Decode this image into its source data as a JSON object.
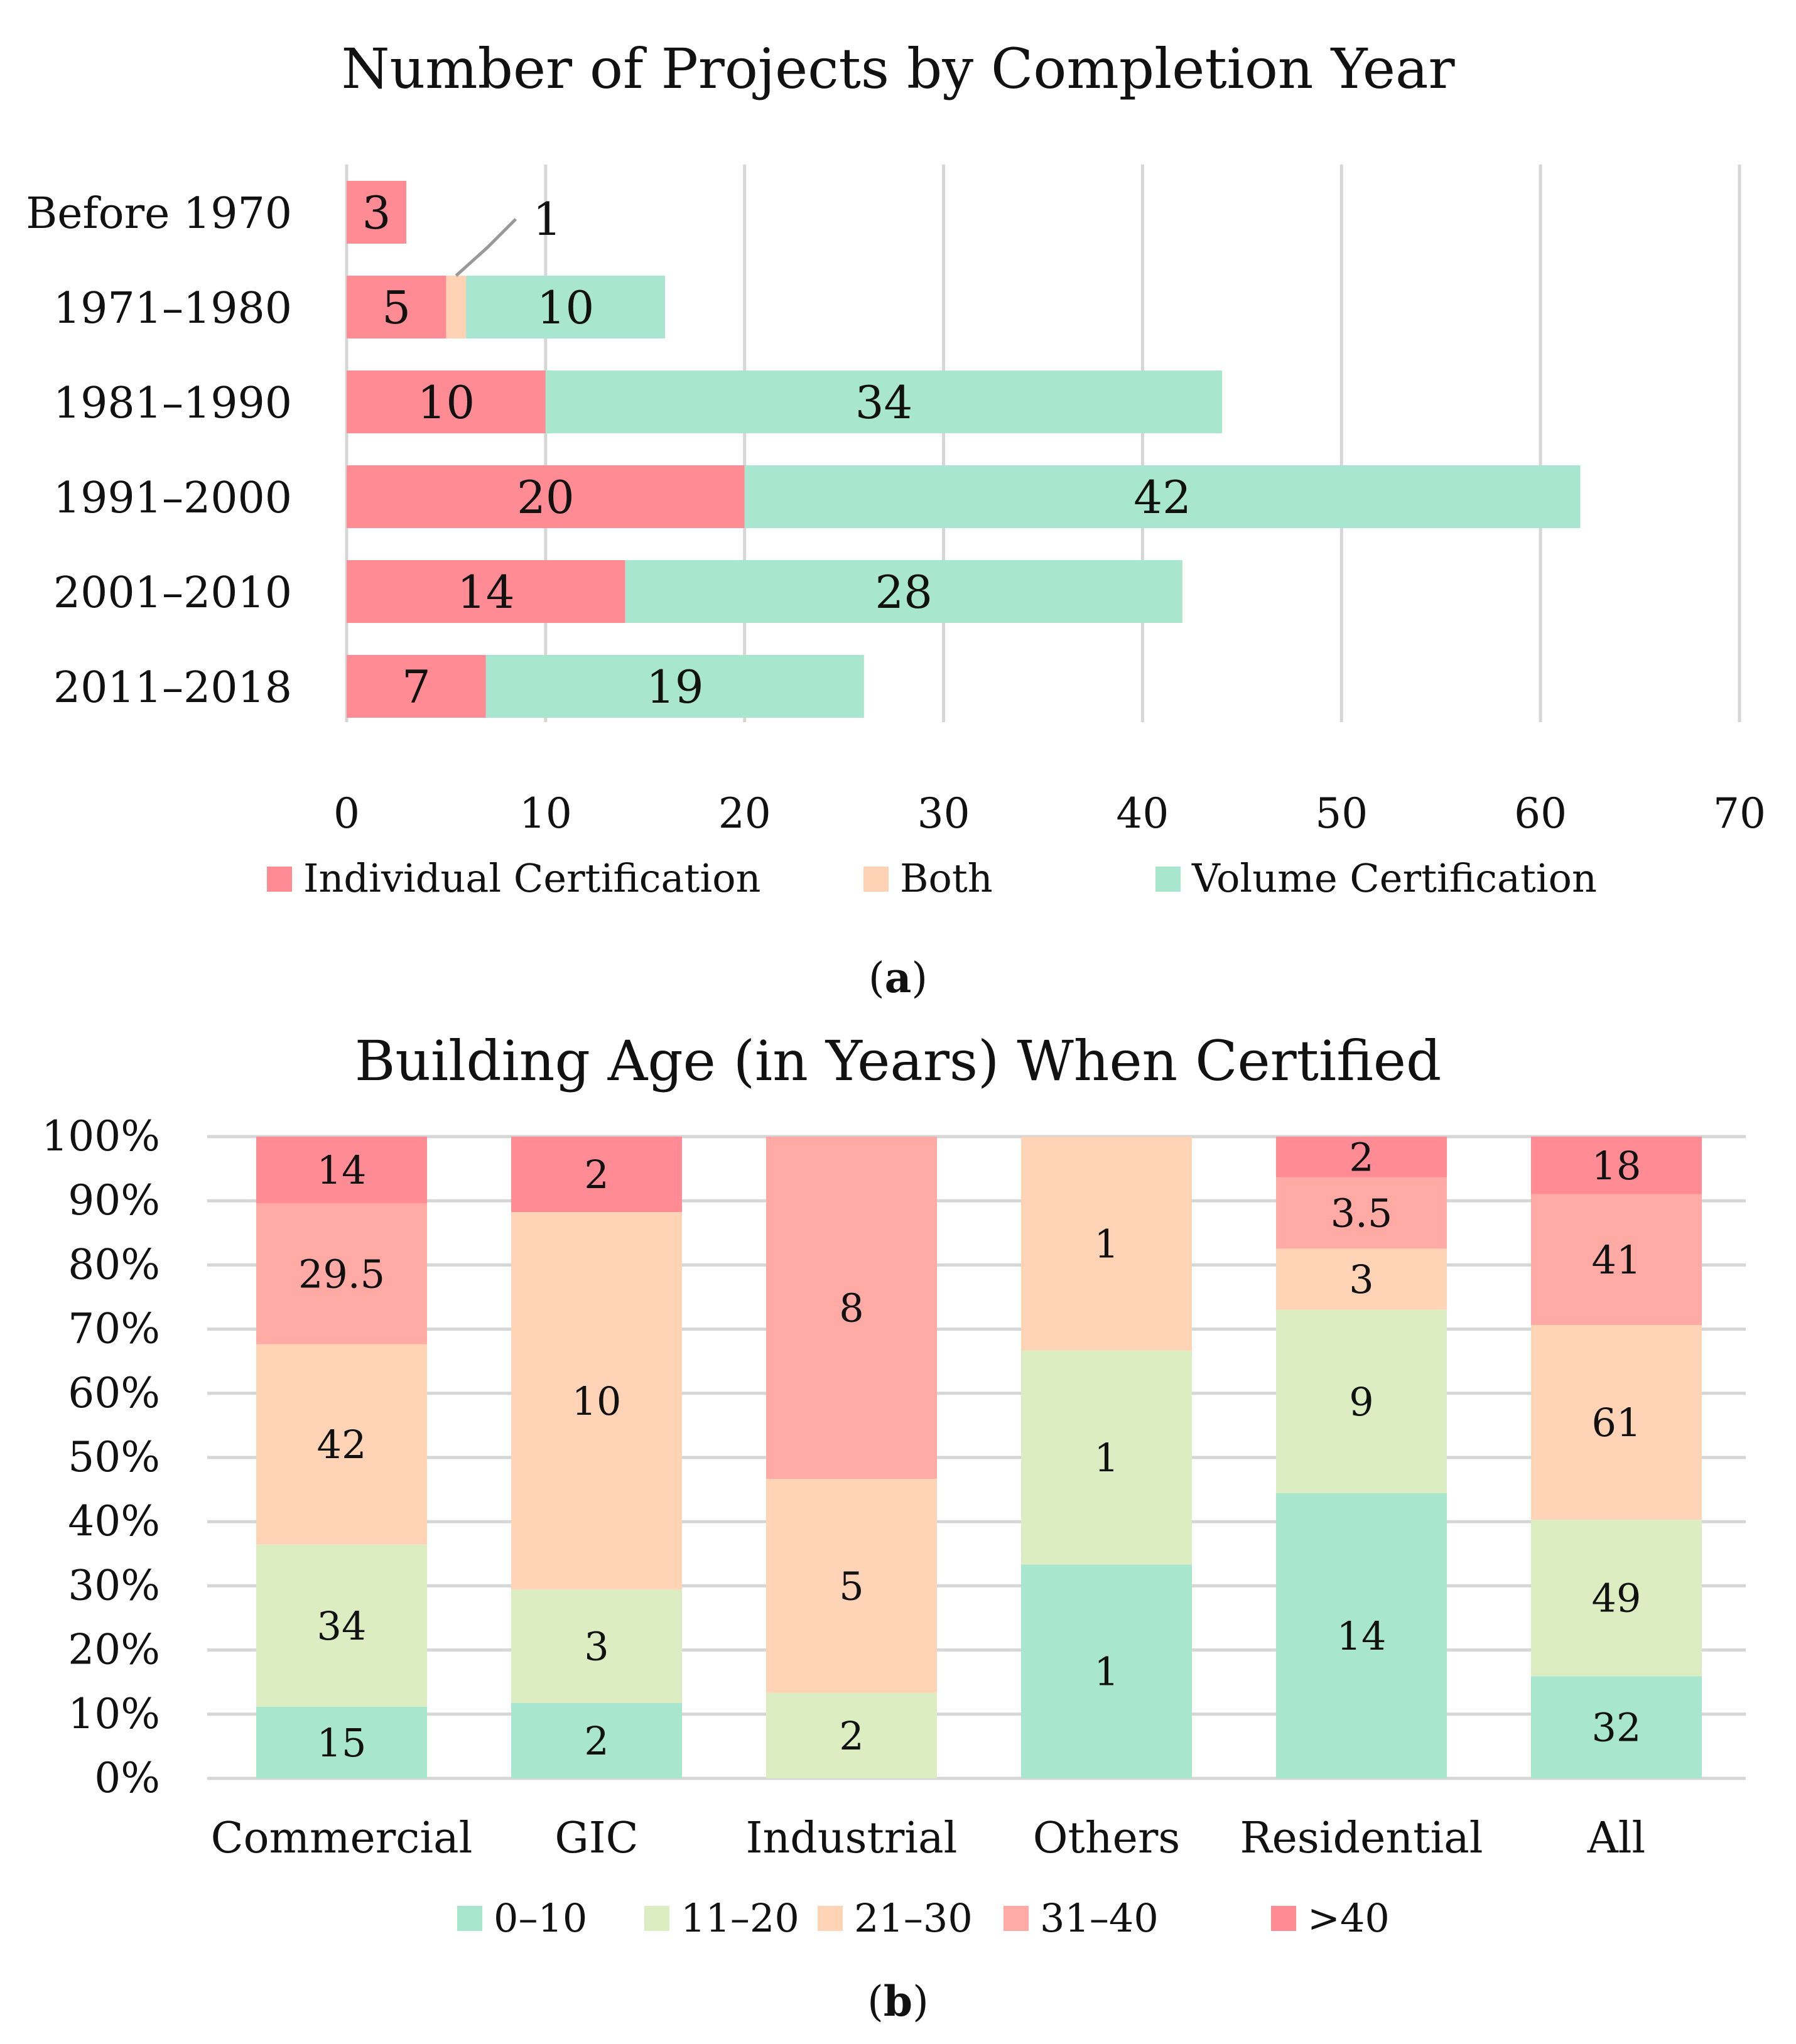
{
  "chart_data": [
    {
      "type": "bar",
      "orientation": "horizontal",
      "stacked": true,
      "title": "Number of Projects by Completion Year",
      "categories": [
        "Before 1970",
        "1971–1980",
        "1981–1990",
        "1991–2000",
        "2001–2010",
        "2011–2018"
      ],
      "series": [
        {
          "name": "Individual Certification",
          "color": "#ff8b94",
          "values": [
            3,
            5,
            10,
            20,
            14,
            7
          ]
        },
        {
          "name": "Both",
          "color": "#ffd2b5",
          "values": [
            0,
            1,
            0,
            0,
            0,
            0
          ]
        },
        {
          "name": "Volume Certification",
          "color": "#a8e6cf",
          "values": [
            0,
            10,
            34,
            42,
            28,
            19
          ]
        }
      ],
      "xlim": [
        0,
        70
      ],
      "xticks": [
        0,
        10,
        20,
        30,
        40,
        50,
        60,
        70
      ],
      "grid": true,
      "legend": "bottom",
      "callout": {
        "category": "1971–1980",
        "series": "Both",
        "text": "1"
      },
      "caption_paren_open": "(",
      "caption_letter": "a",
      "caption_paren_close": ")"
    },
    {
      "type": "bar",
      "orientation": "vertical",
      "stacked": true,
      "normalized": true,
      "title": "Building Age (in Years) When Certified",
      "categories": [
        "Commercial",
        "GIC",
        "Industrial",
        "Others",
        "Residential",
        "All"
      ],
      "series": [
        {
          "name": "0–10",
          "color": "#a8e6cf",
          "values": [
            15,
            2,
            0,
            1,
            14,
            32
          ]
        },
        {
          "name": "11–20",
          "color": "#dcedc1",
          "values": [
            34,
            3,
            2,
            1,
            9,
            49
          ]
        },
        {
          "name": "21–30",
          "color": "#ffd3b6",
          "values": [
            42,
            10,
            5,
            1,
            3,
            61
          ]
        },
        {
          "name": "31–40",
          "color": "#ffaaa5",
          "values": [
            29.5,
            0,
            8,
            0,
            3.5,
            41
          ]
        },
        {
          "name": ">40",
          "color": "#ff8b94",
          "values": [
            14,
            2,
            0,
            0,
            2,
            18
          ]
        }
      ],
      "yticks": [
        "0%",
        "10%",
        "20%",
        "30%",
        "40%",
        "50%",
        "60%",
        "70%",
        "80%",
        "90%",
        "100%"
      ],
      "ylim": [
        0,
        100
      ],
      "grid": true,
      "legend": "bottom",
      "caption_paren_open": "(",
      "caption_letter": "b",
      "caption_paren_close": ")"
    }
  ]
}
